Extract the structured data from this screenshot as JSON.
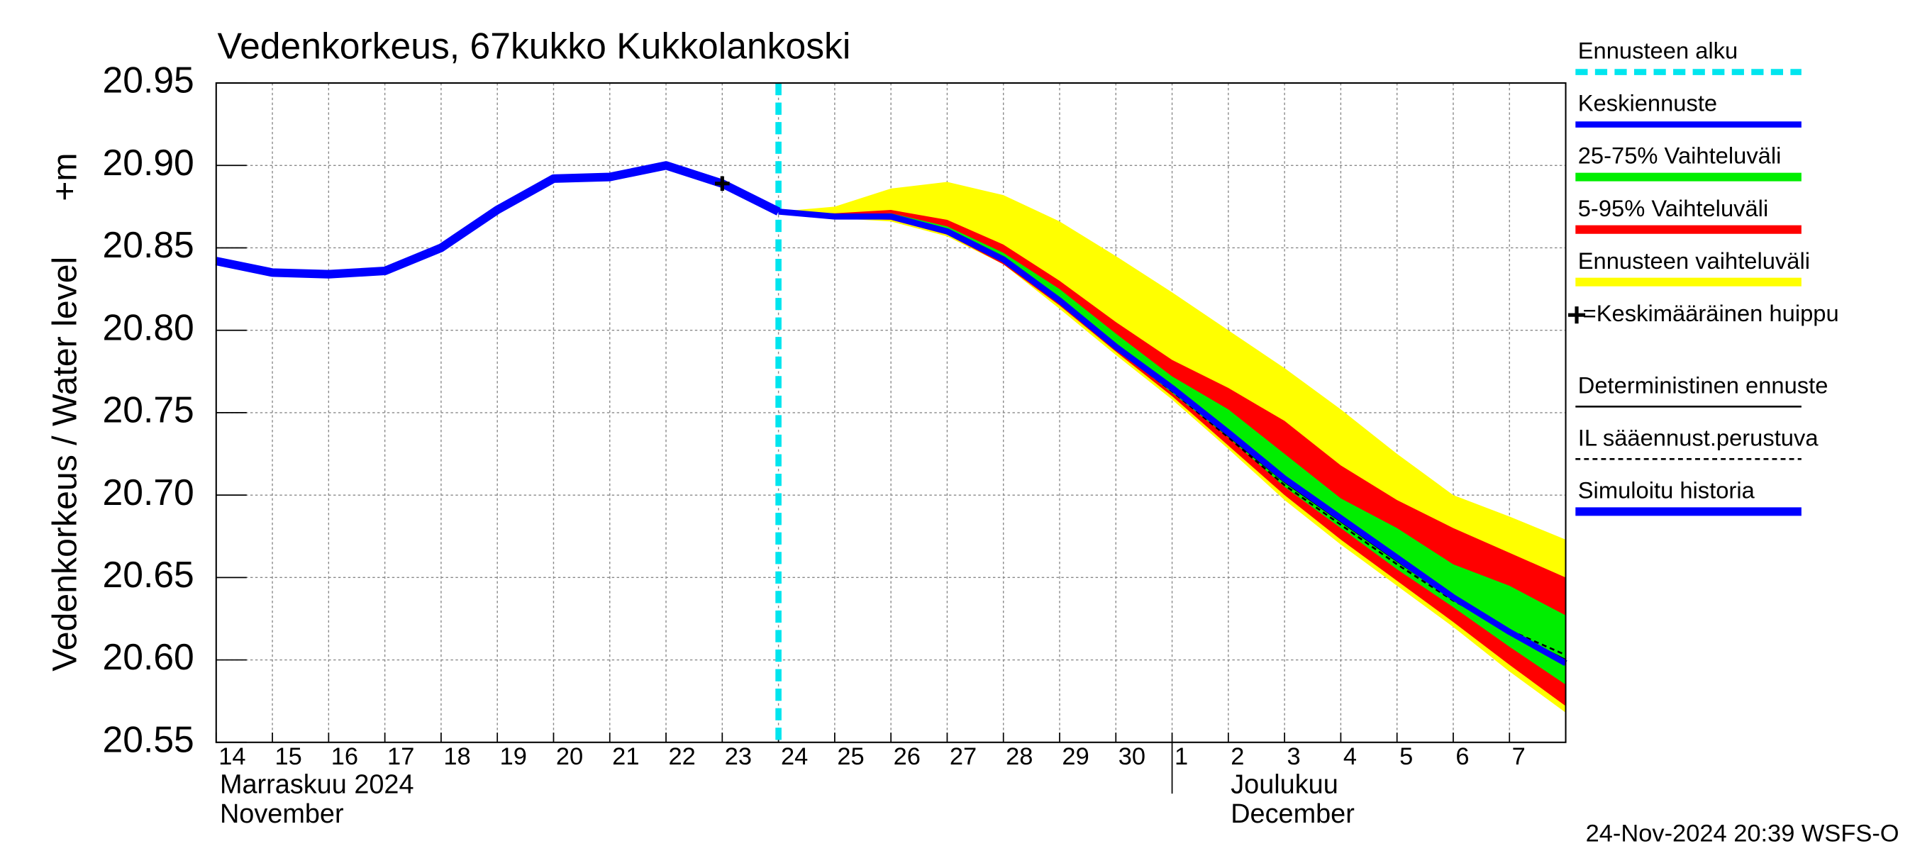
{
  "chart_data": {
    "type": "line",
    "title": "Vedenkorkeus, 67kukko Kukkolankoski",
    "y_label": "Vedenkorkeus / Water level",
    "y_unit": "+m",
    "month_labels": [
      {
        "x": "2024-11-14",
        "lines": [
          "Marraskuu 2024",
          "November"
        ]
      },
      {
        "x": "2024-12-01",
        "lines": [
          "Joulukuu",
          "December"
        ]
      }
    ],
    "footer": "24-Nov-2024 20:39 WSFS-O",
    "xlim": [
      "2024-11-14",
      "2024-12-08"
    ],
    "xticks": [
      {
        "value": "2024-11-14",
        "label": "14"
      },
      {
        "value": "2024-11-15",
        "label": "15"
      },
      {
        "value": "2024-11-16",
        "label": "16"
      },
      {
        "value": "2024-11-17",
        "label": "17"
      },
      {
        "value": "2024-11-18",
        "label": "18"
      },
      {
        "value": "2024-11-19",
        "label": "19"
      },
      {
        "value": "2024-11-20",
        "label": "20"
      },
      {
        "value": "2024-11-21",
        "label": "21"
      },
      {
        "value": "2024-11-22",
        "label": "22"
      },
      {
        "value": "2024-11-23",
        "label": "23"
      },
      {
        "value": "2024-11-24",
        "label": "24"
      },
      {
        "value": "2024-11-25",
        "label": "25"
      },
      {
        "value": "2024-11-26",
        "label": "26"
      },
      {
        "value": "2024-11-27",
        "label": "27"
      },
      {
        "value": "2024-11-28",
        "label": "28"
      },
      {
        "value": "2024-11-29",
        "label": "29"
      },
      {
        "value": "2024-11-30",
        "label": "30"
      },
      {
        "value": "2024-12-01",
        "label": "1"
      },
      {
        "value": "2024-12-02",
        "label": "2"
      },
      {
        "value": "2024-12-03",
        "label": "3"
      },
      {
        "value": "2024-12-04",
        "label": "4"
      },
      {
        "value": "2024-12-05",
        "label": "5"
      },
      {
        "value": "2024-12-06",
        "label": "6"
      },
      {
        "value": "2024-12-07",
        "label": "7"
      }
    ],
    "ylim": [
      20.55,
      20.95
    ],
    "yticks": [
      20.55,
      {
        "value": 20.6,
        "label": "20.60"
      },
      20.65,
      {
        "value": 20.7,
        "label": "20.70"
      },
      20.75,
      {
        "value": 20.8,
        "label": "20.80"
      },
      20.85,
      {
        "value": 20.9,
        "label": "20.90"
      },
      20.95
    ],
    "grid": true,
    "forecast_start": {
      "name": "Ennusteen alku",
      "x": "2024-11-24",
      "color": "#00e5ee"
    },
    "peak": {
      "name": "=Keskimääräinen huippu",
      "x": "2024-11-23",
      "value": 20.889,
      "color": "#000000"
    },
    "bands": [
      {
        "name": "25-75% Vaihteluväli",
        "color": "#00ee00",
        "x": [
          "2024-11-24",
          "2024-11-25",
          "2024-11-26",
          "2024-11-27",
          "2024-11-28",
          "2024-11-29",
          "2024-11-30",
          "2024-12-01",
          "2024-12-02",
          "2024-12-03",
          "2024-12-04",
          "2024-12-05",
          "2024-12-06",
          "2024-12-07",
          "2024-12-08"
        ],
        "upper": [
          20.872,
          20.87,
          20.871,
          20.863,
          20.847,
          20.825,
          20.798,
          20.772,
          20.752,
          20.725,
          20.698,
          20.68,
          20.658,
          20.645,
          20.627
        ],
        "lower": [
          20.872,
          20.869,
          20.868,
          20.859,
          20.842,
          20.817,
          20.789,
          20.762,
          20.735,
          20.705,
          20.68,
          20.655,
          20.632,
          20.608,
          20.585
        ]
      },
      {
        "name": "5-95% Vaihteluväli",
        "color": "#ff0000",
        "x": [
          "2024-11-24",
          "2024-11-25",
          "2024-11-26",
          "2024-11-27",
          "2024-11-28",
          "2024-11-29",
          "2024-11-30",
          "2024-12-01",
          "2024-12-02",
          "2024-12-03",
          "2024-12-04",
          "2024-12-05",
          "2024-12-06",
          "2024-12-07",
          "2024-12-08"
        ],
        "upper": [
          20.872,
          20.871,
          20.873,
          20.867,
          20.852,
          20.83,
          20.805,
          20.782,
          20.765,
          20.745,
          20.718,
          20.697,
          20.68,
          20.665,
          20.65
        ],
        "lower": [
          20.872,
          20.868,
          20.867,
          20.858,
          20.84,
          20.815,
          20.787,
          20.76,
          20.73,
          20.7,
          20.673,
          20.648,
          20.623,
          20.597,
          20.572
        ]
      },
      {
        "name": "Ennusteen vaihteluväli",
        "color": "#ffff00",
        "x": [
          "2024-11-24",
          "2024-11-25",
          "2024-11-26",
          "2024-11-27",
          "2024-11-28",
          "2024-11-29",
          "2024-11-30",
          "2024-12-01",
          "2024-12-02",
          "2024-12-03",
          "2024-12-04",
          "2024-12-05",
          "2024-12-06",
          "2024-12-07",
          "2024-12-08"
        ],
        "upper": [
          20.872,
          20.875,
          20.886,
          20.89,
          20.882,
          20.866,
          20.845,
          20.823,
          20.8,
          20.777,
          20.752,
          20.725,
          20.7,
          20.687,
          20.673
        ],
        "lower": [
          20.872,
          20.868,
          20.866,
          20.857,
          20.84,
          20.813,
          20.785,
          20.758,
          20.728,
          20.697,
          20.67,
          20.645,
          20.62,
          20.593,
          20.568
        ]
      }
    ],
    "series": [
      {
        "name": "Simuloitu historia",
        "color": "#0000ff",
        "width": 7,
        "dashed": false,
        "x": [
          "2024-11-14",
          "2024-11-15",
          "2024-11-16",
          "2024-11-17",
          "2024-11-18",
          "2024-11-19",
          "2024-11-20",
          "2024-11-21",
          "2024-11-22",
          "2024-11-23",
          "2024-11-24"
        ],
        "values": [
          20.842,
          20.835,
          20.834,
          20.836,
          20.85,
          20.873,
          20.892,
          20.893,
          20.9,
          20.889,
          20.872
        ]
      },
      {
        "name": "Keskiennuste",
        "color": "#0000ff",
        "width": 5,
        "dashed": false,
        "x": [
          "2024-11-24",
          "2024-11-25",
          "2024-11-26",
          "2024-11-27",
          "2024-11-28",
          "2024-11-29",
          "2024-11-30",
          "2024-12-01",
          "2024-12-02",
          "2024-12-03",
          "2024-12-04",
          "2024-12-05",
          "2024-12-06",
          "2024-12-07",
          "2024-12-08"
        ],
        "values": [
          20.872,
          20.869,
          20.869,
          20.86,
          20.843,
          20.818,
          20.79,
          20.765,
          20.738,
          20.71,
          20.686,
          20.662,
          20.638,
          20.617,
          20.598
        ]
      },
      {
        "name": "Deterministinen ennuste",
        "color": "#000000",
        "width": 1.5,
        "dashed": false,
        "x": [
          "2024-11-24",
          "2024-11-25",
          "2024-11-26",
          "2024-11-27",
          "2024-11-28",
          "2024-11-29",
          "2024-11-30",
          "2024-12-01",
          "2024-12-02",
          "2024-12-03",
          "2024-12-04",
          "2024-12-05",
          "2024-12-06",
          "2024-12-07",
          "2024-12-08"
        ],
        "values": [
          20.872,
          20.869,
          20.869,
          20.86,
          20.842,
          20.817,
          20.789,
          20.764,
          20.736,
          20.708,
          20.684,
          20.66,
          20.637,
          20.617,
          20.6
        ]
      },
      {
        "name": "IL sääennust.perustuva",
        "color": "#000000",
        "width": 1.5,
        "dashed": true,
        "x": [
          "2024-11-24",
          "2024-11-25",
          "2024-11-26",
          "2024-11-27",
          "2024-11-28",
          "2024-11-29",
          "2024-11-30",
          "2024-12-01",
          "2024-12-02",
          "2024-12-03",
          "2024-12-04",
          "2024-12-05",
          "2024-12-06",
          "2024-12-07",
          "2024-12-08"
        ],
        "values": [
          20.872,
          20.869,
          20.869,
          20.86,
          20.842,
          20.817,
          20.789,
          20.763,
          20.735,
          20.706,
          20.682,
          20.658,
          20.636,
          20.618,
          20.603
        ]
      }
    ]
  }
}
